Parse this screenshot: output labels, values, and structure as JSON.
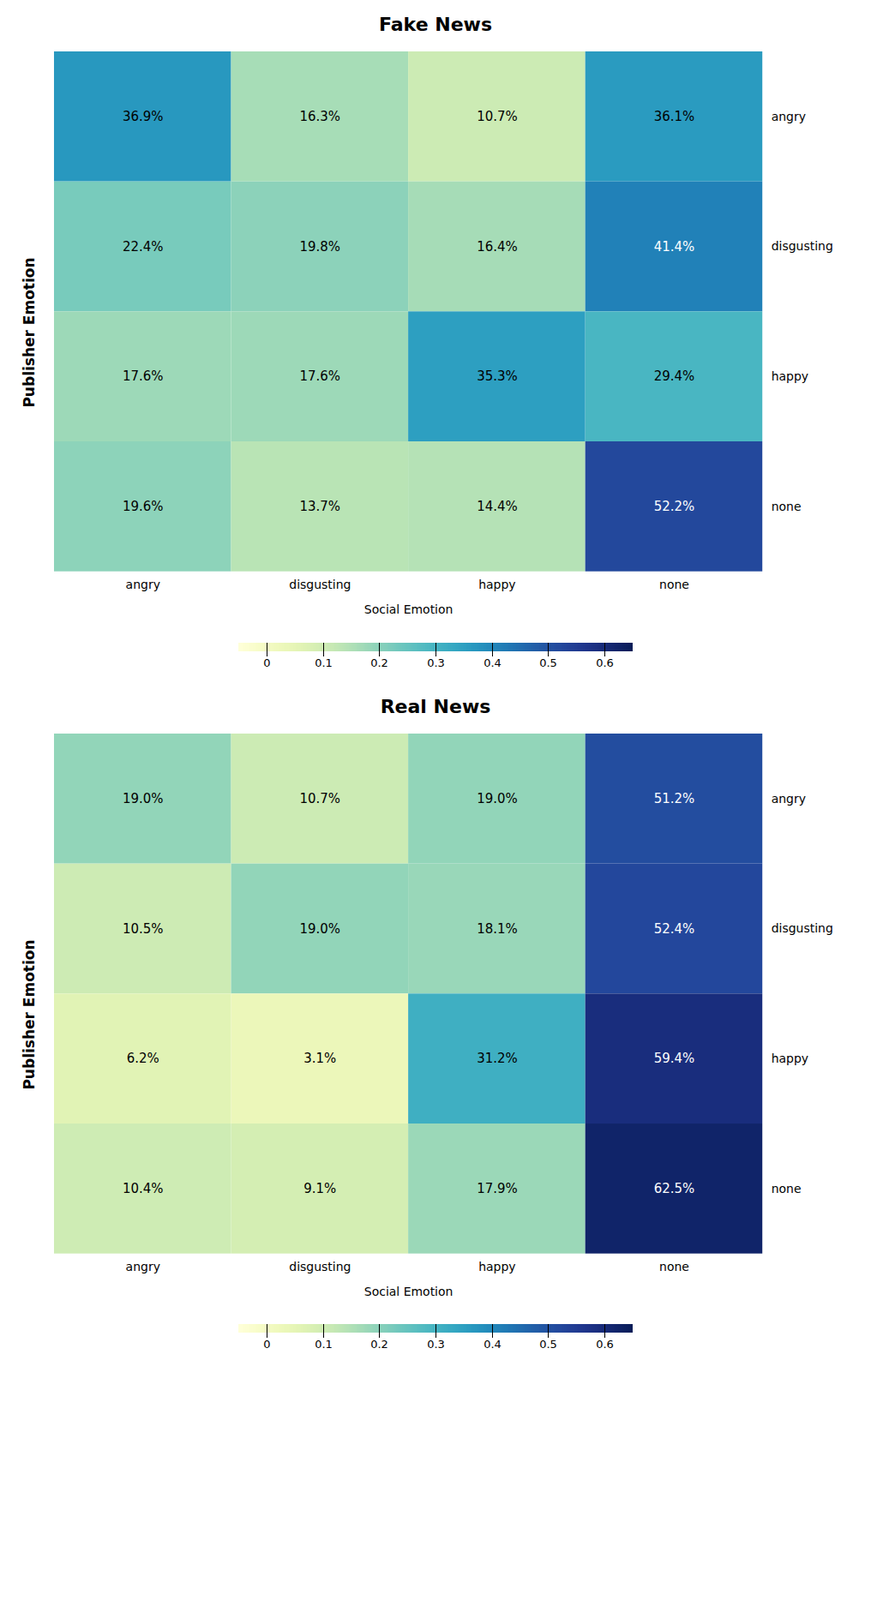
{
  "chart_data": [
    {
      "type": "heatmap",
      "title": "Fake News",
      "x_categories": [
        "angry",
        "disgusting",
        "happy",
        "none"
      ],
      "y_categories": [
        "angry",
        "disgusting",
        "happy",
        "none"
      ],
      "xlabel": "Social Emotion",
      "ylabel": "Publisher Emotion",
      "values": [
        [
          0.369,
          0.163,
          0.107,
          0.361
        ],
        [
          0.224,
          0.198,
          0.164,
          0.414
        ],
        [
          0.176,
          0.176,
          0.353,
          0.294
        ],
        [
          0.196,
          0.137,
          0.144,
          0.522
        ]
      ],
      "value_labels": [
        [
          "36.9%",
          "16.3%",
          "10.7%",
          "36.1%"
        ],
        [
          "22.4%",
          "19.8%",
          "16.4%",
          "41.4%"
        ],
        [
          "17.6%",
          "17.6%",
          "35.3%",
          "29.4%"
        ],
        [
          "19.6%",
          "13.7%",
          "14.4%",
          "52.2%"
        ]
      ],
      "data_labels": true,
      "color": "YlGnBu",
      "colorbar_range": [
        -0.05,
        0.65
      ],
      "colorbar_ticks": [
        0,
        0.1,
        0.2,
        0.3,
        0.4,
        0.5,
        0.6
      ]
    },
    {
      "type": "heatmap",
      "title": "Real News",
      "x_categories": [
        "angry",
        "disgusting",
        "happy",
        "none"
      ],
      "y_categories": [
        "angry",
        "disgusting",
        "happy",
        "none"
      ],
      "xlabel": "Social Emotion",
      "ylabel": "Publisher Emotion",
      "values": [
        [
          0.19,
          0.107,
          0.19,
          0.512
        ],
        [
          0.105,
          0.19,
          0.181,
          0.524
        ],
        [
          0.062,
          0.031,
          0.312,
          0.594
        ],
        [
          0.104,
          0.091,
          0.179,
          0.625
        ]
      ],
      "value_labels": [
        [
          "19.0%",
          "10.7%",
          "19.0%",
          "51.2%"
        ],
        [
          "10.5%",
          "19.0%",
          "18.1%",
          "52.4%"
        ],
        [
          "6.2%",
          "3.1%",
          "31.2%",
          "59.4%"
        ],
        [
          "10.4%",
          "9.1%",
          "17.9%",
          "62.5%"
        ]
      ],
      "data_labels": true,
      "color": "YlGnBu",
      "colorbar_range": [
        -0.05,
        0.65
      ],
      "colorbar_ticks": [
        0,
        0.1,
        0.2,
        0.3,
        0.4,
        0.5,
        0.6
      ]
    }
  ]
}
